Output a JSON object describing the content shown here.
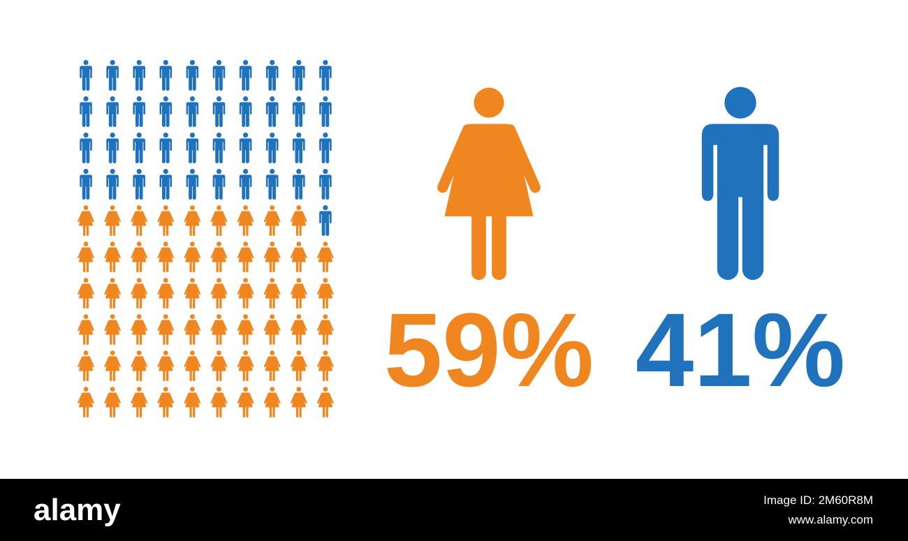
{
  "chart_data": {
    "type": "pictogram",
    "values": [
      59,
      41
    ],
    "value_labels": [
      "59%",
      "41%"
    ],
    "colors": [
      "#f0861f",
      "#1f72bb"
    ]
  },
  "watermark": {
    "brand": "alamy",
    "image_id": "Image ID: 2M60R8M",
    "url": "www.alamy.com"
  }
}
